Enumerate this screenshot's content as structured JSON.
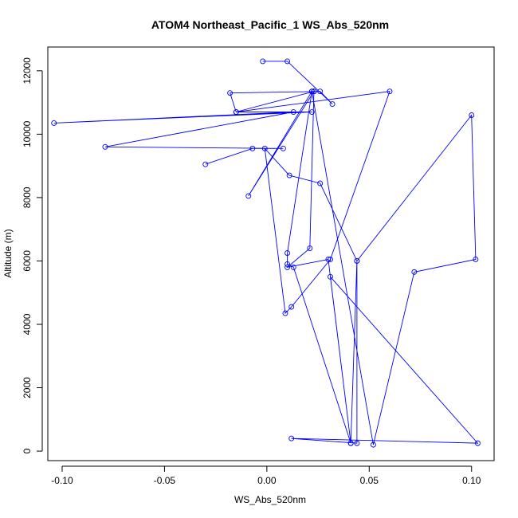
{
  "chart_data": {
    "type": "line",
    "title": "ATOM4 Northeast_Pacific_1 WS_Abs_520nm",
    "xlabel": "WS_Abs_520nm",
    "ylabel": "Altitude (m)",
    "xlim": [
      -0.107,
      0.111
    ],
    "ylim": [
      -300,
      12750
    ],
    "x_ticks": [
      -0.1,
      -0.05,
      0.0,
      0.05,
      0.1
    ],
    "x_tick_labels": [
      "-0.10",
      "-0.05",
      "0.00",
      "0.05",
      "0.10"
    ],
    "y_ticks": [
      0,
      2000,
      4000,
      6000,
      8000,
      10000,
      12000
    ],
    "y_tick_labels": [
      "0",
      "2000",
      "4000",
      "6000",
      "8000",
      "10000",
      "12000"
    ],
    "grid": false,
    "legend": "none",
    "marker": "open-circle",
    "color": "#0000ff",
    "series": [
      {
        "x": [
          -0.002,
          0.01,
          0.032,
          0.026,
          -0.018,
          -0.015,
          0.06,
          0.031,
          0.012,
          0.009,
          -0.001,
          0.011,
          0.026,
          0.044,
          0.1,
          0.102,
          0.072,
          0.052,
          0.022,
          0.01,
          0.01,
          0.013,
          0.041,
          0.031,
          0.103,
          0.012,
          0.044,
          0.044,
          0.041,
          0.03,
          0.01,
          0.021,
          0.023,
          0.022,
          -0.009,
          0.023,
          0.023,
          -0.015,
          0.022,
          -0.104,
          0.013,
          -0.079,
          0.008,
          -0.007,
          -0.03
        ],
        "y": [
          12300,
          12300,
          10950,
          11350,
          11300,
          10700,
          11350,
          6050,
          4550,
          4350,
          9550,
          8700,
          8450,
          6000,
          10600,
          6050,
          5650,
          200,
          11350,
          6250,
          5900,
          5800,
          250,
          5500,
          250,
          400,
          250,
          6000,
          250,
          6050,
          5800,
          6400,
          11350,
          11350,
          8050,
          11350,
          11350,
          10700,
          10700,
          10350,
          10700,
          9600,
          9550,
          9550,
          9050
        ]
      }
    ]
  }
}
